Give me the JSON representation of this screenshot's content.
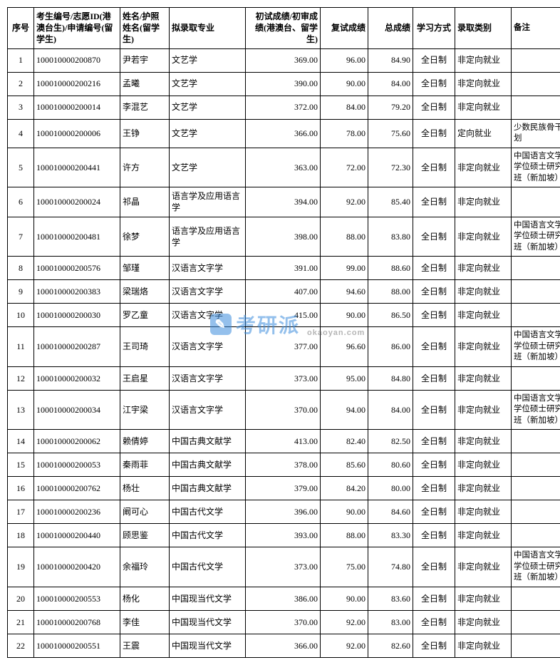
{
  "columns": [
    "序号",
    "考生编号/志愿ID(港澳台生)/申请编号(留学生)",
    "姓名/护照姓名(留学生)",
    "拟录取专业",
    "初试成绩/初审成绩(港澳台、留学生)",
    "复试成绩",
    "总成绩",
    "学习方式",
    "录取类别",
    "备注"
  ],
  "col_classes": [
    "col-seq",
    "col-id",
    "col-name",
    "col-major",
    "col-s1",
    "col-s2",
    "col-s3",
    "col-mode",
    "col-type",
    "col-note"
  ],
  "rows": [
    [
      "1",
      "100010000200870",
      "尹若宇",
      "文艺学",
      "369.00",
      "96.00",
      "84.90",
      "全日制",
      "非定向就业",
      ""
    ],
    [
      "2",
      "100010000200216",
      "孟曦",
      "文艺学",
      "390.00",
      "90.00",
      "84.00",
      "全日制",
      "非定向就业",
      ""
    ],
    [
      "3",
      "100010000200014",
      "李混艺",
      "文艺学",
      "372.00",
      "84.00",
      "79.20",
      "全日制",
      "非定向就业",
      ""
    ],
    [
      "4",
      "100010000200006",
      "王铮",
      "文艺学",
      "366.00",
      "78.00",
      "75.60",
      "全日制",
      "定向就业",
      "少数民族骨干计划"
    ],
    [
      "5",
      "100010000200441",
      "许方",
      "文艺学",
      "363.00",
      "72.00",
      "72.30",
      "全日制",
      "非定向就业",
      "中国语言文学双学位硕士研究生班（新加坡）"
    ],
    [
      "6",
      "100010000200024",
      "祁晶",
      "语言学及应用语言学",
      "394.00",
      "92.00",
      "85.40",
      "全日制",
      "非定向就业",
      ""
    ],
    [
      "7",
      "100010000200481",
      "徐梦",
      "语言学及应用语言学",
      "398.00",
      "88.00",
      "83.80",
      "全日制",
      "非定向就业",
      "中国语言文学双学位硕士研究生班（新加坡）"
    ],
    [
      "8",
      "100010000200576",
      "邹瑾",
      "汉语言文字学",
      "391.00",
      "99.00",
      "88.60",
      "全日制",
      "非定向就业",
      ""
    ],
    [
      "9",
      "100010000200383",
      "梁瑞烙",
      "汉语言文字学",
      "407.00",
      "94.60",
      "88.00",
      "全日制",
      "非定向就业",
      ""
    ],
    [
      "10",
      "100010000200030",
      "罗乙童",
      "汉语言文字学",
      "415.00",
      "90.00",
      "86.50",
      "全日制",
      "非定向就业",
      ""
    ],
    [
      "11",
      "100010000200287",
      "王司琦",
      "汉语言文字学",
      "377.00",
      "96.60",
      "86.00",
      "全日制",
      "非定向就业",
      "中国语言文学双学位硕士研究生班（新加坡）"
    ],
    [
      "12",
      "100010000200032",
      "王启星",
      "汉语言文字学",
      "373.00",
      "95.00",
      "84.80",
      "全日制",
      "非定向就业",
      ""
    ],
    [
      "13",
      "100010000200034",
      "江宇梁",
      "汉语言文字学",
      "370.00",
      "94.00",
      "84.00",
      "全日制",
      "非定向就业",
      "中国语言文学双学位硕士研究生班（新加坡）"
    ],
    [
      "14",
      "100010000200062",
      "赖倩婷",
      "中国古典文献学",
      "413.00",
      "82.40",
      "82.50",
      "全日制",
      "非定向就业",
      ""
    ],
    [
      "15",
      "100010000200053",
      "秦雨菲",
      "中国古典文献学",
      "378.00",
      "85.60",
      "80.60",
      "全日制",
      "非定向就业",
      ""
    ],
    [
      "16",
      "100010000200762",
      "杨壮",
      "中国古典文献学",
      "379.00",
      "84.20",
      "80.00",
      "全日制",
      "非定向就业",
      ""
    ],
    [
      "17",
      "100010000200236",
      "阚可心",
      "中国古代文学",
      "396.00",
      "90.00",
      "84.60",
      "全日制",
      "非定向就业",
      ""
    ],
    [
      "18",
      "100010000200440",
      "顾思鉴",
      "中国古代文学",
      "393.00",
      "88.00",
      "83.30",
      "全日制",
      "非定向就业",
      ""
    ],
    [
      "19",
      "100010000200420",
      "余福玲",
      "中国古代文学",
      "373.00",
      "75.00",
      "74.80",
      "全日制",
      "非定向就业",
      "中国语言文学双学位硕士研究生班（新加坡）"
    ],
    [
      "20",
      "100010000200553",
      "杨化",
      "中国现当代文学",
      "386.00",
      "90.00",
      "83.60",
      "全日制",
      "非定向就业",
      ""
    ],
    [
      "21",
      "100010000200768",
      "李佳",
      "中国现当代文学",
      "370.00",
      "92.00",
      "83.00",
      "全日制",
      "非定向就业",
      ""
    ],
    [
      "22",
      "100010000200551",
      "王震",
      "中国现当代文学",
      "366.00",
      "92.00",
      "82.60",
      "全日制",
      "非定向就业",
      ""
    ]
  ],
  "watermark_text": "考研派",
  "watermark_sub": "okaoyan.com"
}
